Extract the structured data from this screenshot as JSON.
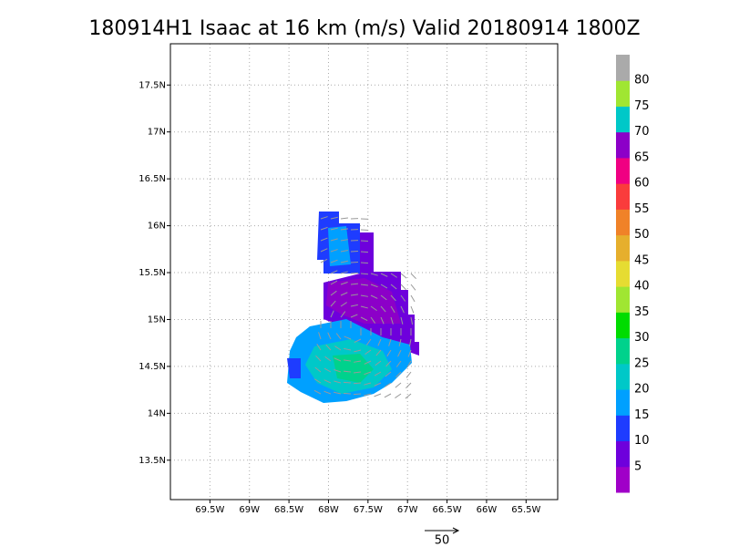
{
  "map": {
    "title": "180914H1  Isaac at 16 km (m/s) Valid 20180914  1800Z",
    "xlim": [
      -70,
      -65.1
    ],
    "ylim": [
      13.08,
      17.94
    ],
    "xticks": [
      {
        "value": -69.5,
        "label": "69.5W"
      },
      {
        "value": -69,
        "label": "69W"
      },
      {
        "value": -68.5,
        "label": "68.5W"
      },
      {
        "value": -68,
        "label": "68W"
      },
      {
        "value": -67.5,
        "label": "67.5W"
      },
      {
        "value": -67,
        "label": "67W"
      },
      {
        "value": -66.5,
        "label": "66.5W"
      },
      {
        "value": -66,
        "label": "66W"
      },
      {
        "value": -65.5,
        "label": "65.5W"
      }
    ],
    "yticks": [
      {
        "value": 13.5,
        "label": "13.5N"
      },
      {
        "value": 14,
        "label": "14N"
      },
      {
        "value": 14.5,
        "label": "14.5N"
      },
      {
        "value": 15,
        "label": "15N"
      },
      {
        "value": 15.5,
        "label": "15.5N"
      },
      {
        "value": 16,
        "label": "16N"
      },
      {
        "value": 16.5,
        "label": "16.5N"
      },
      {
        "value": 17,
        "label": "17N"
      },
      {
        "value": 17.5,
        "label": "17.5N"
      }
    ],
    "grid": true,
    "colorbar": {
      "levels": [
        5,
        10,
        15,
        20,
        25,
        30,
        35,
        40,
        45,
        50,
        55,
        60,
        65,
        70,
        75,
        80
      ],
      "colors": [
        "#a000c8",
        "#6e00dc",
        "#1e3cff",
        "#00a0ff",
        "#00c8c8",
        "#00d28c",
        "#00dc00",
        "#a0e632",
        "#e6dc32",
        "#e6af2d",
        "#f08228",
        "#fa3c3c",
        "#f00082",
        "#8c00c8",
        "#00c8c8",
        "#a0e632",
        "#aaaaaa"
      ]
    },
    "vector_scale": "50"
  }
}
